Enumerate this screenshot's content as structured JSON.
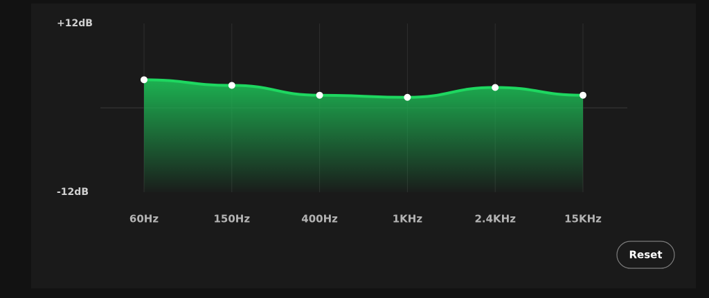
{
  "chart_data": {
    "type": "area",
    "categories": [
      "60Hz",
      "150Hz",
      "400Hz",
      "1KHz",
      "2.4KHz",
      "15KHz"
    ],
    "values": [
      4.0,
      3.2,
      1.8,
      1.5,
      2.9,
      1.8
    ],
    "color": "#1ed760",
    "ylim": [
      -12,
      12
    ],
    "yticks": [
      {
        "value": 12,
        "label": "+12dB"
      },
      {
        "value": -12,
        "label": "-12dB"
      }
    ],
    "grid": true
  },
  "reset_button": {
    "label": "Reset"
  }
}
